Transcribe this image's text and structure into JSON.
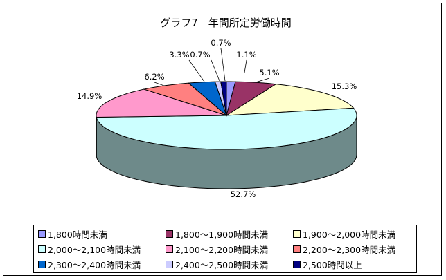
{
  "title": "グラフ7　年間所定労働時間",
  "chart_data": {
    "type": "pie",
    "style": "3d",
    "categories": [
      "1,800時間未満",
      "1,800～1,900時間未満",
      "1,900～2,000時間未満",
      "2,000～2,100時間未満",
      "2,100～2,200時間未満",
      "2,200～2,300時間未満",
      "2,300～2,400時間未満",
      "2,400～2,500時間未満",
      "2,500時間以上"
    ],
    "values": [
      1.1,
      5.1,
      15.3,
      52.7,
      14.9,
      6.2,
      3.3,
      0.7,
      0.7
    ],
    "labels": [
      "1.1%",
      "5.1%",
      "15.3%",
      "52.7%",
      "14.9%",
      "6.2%",
      "3.3%",
      "0.7%",
      "0.7%"
    ],
    "colors": [
      "#9999ff",
      "#993366",
      "#ffffcc",
      "#ccffff",
      "#ff99cc",
      "#ff8080",
      "#0066cc",
      "#ccccff",
      "#000080"
    ],
    "side_colors": [
      "#6b6bb2",
      "#6b2447",
      "#b2b28f",
      "#6e8a8a",
      "#b26b8f",
      "#b25a5a",
      "#00478f",
      "#8f8fb2",
      "#00005a"
    ],
    "legend_position": "bottom"
  }
}
